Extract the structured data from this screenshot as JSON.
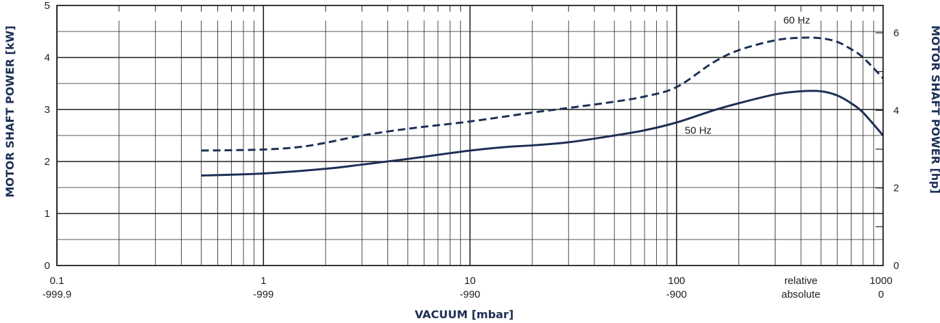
{
  "chart_data": {
    "type": "line",
    "title": "",
    "xlabel": "VACUUM  [mbar]",
    "ylabel": "MOTOR SHAFT POWER  [kW]",
    "ylabel_right": "MOTOR SHAFT POWER  [hp]",
    "x_scale": "log",
    "xlim": [
      0.1,
      1000
    ],
    "ylim": [
      0,
      5
    ],
    "ylim_right": [
      0,
      6.705
    ],
    "x_ticks": [
      {
        "value": 0.1,
        "relative": "0.1",
        "absolute": "-999.9"
      },
      {
        "value": 1,
        "relative": "1",
        "absolute": "-999"
      },
      {
        "value": 10,
        "relative": "10",
        "absolute": "-990"
      },
      {
        "value": 100,
        "relative": "100",
        "absolute": "-900"
      },
      {
        "value": 1000,
        "relative": "1000",
        "absolute": "0"
      }
    ],
    "x_tick_legend": {
      "relative": "relative",
      "absolute": "absolute"
    },
    "y_ticks": [
      "0",
      "1",
      "2",
      "3",
      "4",
      "5"
    ],
    "y_ticks_right": [
      "0",
      "2",
      "4",
      "6"
    ],
    "grid": true,
    "series": [
      {
        "name": "60 Hz",
        "style": "dashed",
        "color": "#1d2f55",
        "x": [
          0.5,
          1,
          1.5,
          2,
          3,
          5,
          10,
          20,
          30,
          50,
          70,
          100,
          150,
          200,
          300,
          400,
          500,
          600,
          700,
          800,
          1000
        ],
        "y": [
          2.21,
          2.23,
          2.28,
          2.36,
          2.5,
          2.63,
          2.77,
          2.94,
          3.03,
          3.15,
          3.25,
          3.43,
          3.9,
          4.14,
          4.33,
          4.38,
          4.37,
          4.3,
          4.16,
          4.0,
          3.6
        ]
      },
      {
        "name": "50 Hz",
        "style": "solid",
        "color": "#1d2f55",
        "x": [
          0.5,
          1,
          2,
          3,
          5,
          10,
          15,
          20,
          30,
          50,
          70,
          100,
          150,
          200,
          300,
          400,
          500,
          600,
          700,
          800,
          1000
        ],
        "y": [
          1.73,
          1.77,
          1.86,
          1.94,
          2.05,
          2.21,
          2.28,
          2.31,
          2.37,
          2.5,
          2.6,
          2.75,
          2.98,
          3.12,
          3.29,
          3.35,
          3.35,
          3.27,
          3.12,
          2.94,
          2.5
        ]
      }
    ],
    "series_label_positions": {
      "60 Hz": [
        300,
        4.72
      ],
      "50 Hz": [
        100,
        2.6
      ]
    }
  }
}
